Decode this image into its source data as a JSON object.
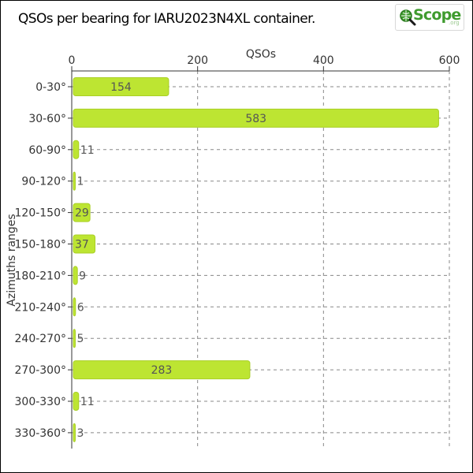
{
  "header": {
    "title": "QSOs per bearing for IARU2023N4XL container.",
    "logo_text": "Scope",
    "logo_suffix": ".org"
  },
  "chart_data": {
    "type": "bar",
    "orientation": "horizontal",
    "title": "QSOs per bearing for IARU2023N4XL container.",
    "xlabel": "QSOs",
    "ylabel": "Azimuths ranges",
    "xlim": [
      0,
      600
    ],
    "x_ticks": [
      0,
      200,
      400,
      600
    ],
    "x_axis_position": "top",
    "grid": true,
    "bar_color": "#bde532",
    "categories": [
      "0-30°",
      "30-60°",
      "60-90°",
      "90-120°",
      "120-150°",
      "150-180°",
      "180-210°",
      "210-240°",
      "240-270°",
      "270-300°",
      "300-330°",
      "330-360°"
    ],
    "values": [
      154,
      583,
      11,
      1,
      29,
      37,
      9,
      6,
      5,
      283,
      11,
      3
    ]
  }
}
